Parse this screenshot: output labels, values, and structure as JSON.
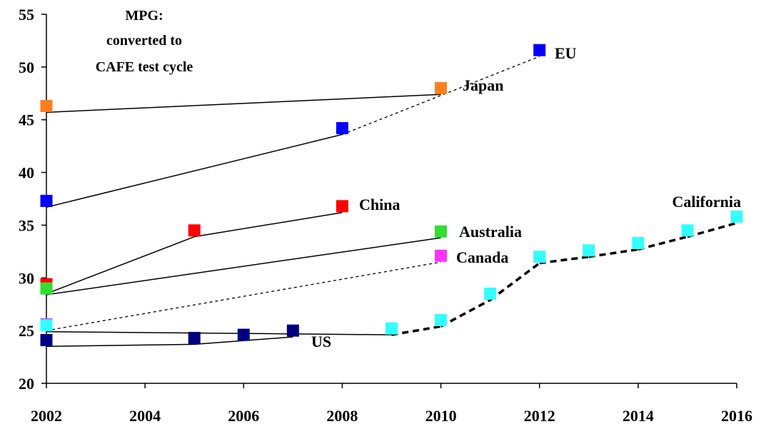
{
  "chart_data": {
    "type": "scatter",
    "title": "",
    "xlabel": "",
    "ylabel": "",
    "xlim": [
      2002,
      2016
    ],
    "ylim": [
      20,
      55
    ],
    "x_ticks": [
      "2002",
      "2004",
      "2006",
      "2008",
      "2010",
      "2012",
      "2014",
      "2016"
    ],
    "y_ticks": [
      "20",
      "25",
      "30",
      "35",
      "40",
      "45",
      "50",
      "55"
    ],
    "grid": false,
    "annotation": [
      "MPG:",
      "converted to",
      "CAFE test cycle"
    ],
    "series": [
      {
        "name": "EU",
        "color": "#0000ff",
        "points": [
          [
            2002,
            37.3
          ],
          [
            2008,
            44.2
          ],
          [
            2012,
            51.6
          ]
        ],
        "segments": [
          {
            "from": [
              2002,
              36.7
            ],
            "to": [
              2008,
              43.6
            ],
            "style": "solid"
          },
          {
            "from": [
              2008,
              43.6
            ],
            "to": [
              2012,
              51.0
            ],
            "style": "dashed"
          }
        ]
      },
      {
        "name": "Japan",
        "color": "#ff7f1f",
        "points": [
          [
            2002,
            46.3
          ],
          [
            2010,
            48.0
          ]
        ],
        "segments": [
          {
            "from": [
              2002,
              45.7
            ],
            "to": [
              2010,
              47.4
            ],
            "style": "solid"
          }
        ]
      },
      {
        "name": "China",
        "color": "#ff0000",
        "points": [
          [
            2002,
            29.4
          ],
          [
            2005,
            34.5
          ],
          [
            2008,
            36.8
          ]
        ],
        "segments": [
          {
            "from": [
              2002,
              28.5
            ],
            "to": [
              2005,
              33.9
            ],
            "style": "solid"
          },
          {
            "from": [
              2005,
              33.9
            ],
            "to": [
              2008,
              36.2
            ],
            "style": "solid"
          }
        ]
      },
      {
        "name": "Australia",
        "color": "#33dd33",
        "points": [
          [
            2002,
            29.0
          ],
          [
            2010,
            34.4
          ]
        ],
        "segments": [
          {
            "from": [
              2002,
              28.4
            ],
            "to": [
              2010,
              33.8
            ],
            "style": "solid"
          }
        ]
      },
      {
        "name": "Canada",
        "color": "#ff33ff",
        "points": [
          [
            2002,
            25.6
          ],
          [
            2010,
            32.1
          ]
        ],
        "segments": [
          {
            "from": [
              2002,
              25.0
            ],
            "to": [
              2010,
              31.5
            ],
            "style": "dashed"
          }
        ]
      },
      {
        "name": "US",
        "color": "#000080",
        "points": [
          [
            2002,
            24.1
          ],
          [
            2005,
            24.3
          ],
          [
            2006,
            24.6
          ],
          [
            2007,
            25.0
          ]
        ],
        "segments": [
          {
            "from": [
              2002,
              23.5
            ],
            "to": [
              2005,
              23.7
            ],
            "style": "solid"
          },
          {
            "from": [
              2005,
              23.7
            ],
            "to": [
              2007,
              24.4
            ],
            "style": "solid"
          }
        ]
      },
      {
        "name": "California",
        "color": "#33ffff",
        "points": [
          [
            2002,
            25.5
          ],
          [
            2009,
            25.2
          ],
          [
            2010,
            26.0
          ],
          [
            2011,
            28.5
          ],
          [
            2012,
            32.0
          ],
          [
            2013,
            32.6
          ],
          [
            2014,
            33.3
          ],
          [
            2015,
            34.5
          ],
          [
            2016,
            35.8
          ]
        ],
        "segments": [
          {
            "from": [
              2002,
              24.9
            ],
            "to": [
              2009,
              24.6
            ],
            "style": "solid"
          },
          {
            "from": [
              2009,
              24.6
            ],
            "to": [
              2010,
              25.4
            ],
            "style": "bold-dashed"
          },
          {
            "from": [
              2010,
              25.4
            ],
            "to": [
              2011,
              27.9
            ],
            "style": "bold-dashed"
          },
          {
            "from": [
              2011,
              27.9
            ],
            "to": [
              2012,
              31.4
            ],
            "style": "bold-dashed"
          },
          {
            "from": [
              2012,
              31.4
            ],
            "to": [
              2013,
              32.0
            ],
            "style": "bold-dashed"
          },
          {
            "from": [
              2013,
              32.0
            ],
            "to": [
              2014,
              32.7
            ],
            "style": "bold-dashed"
          },
          {
            "from": [
              2014,
              32.7
            ],
            "to": [
              2015,
              33.9
            ],
            "style": "bold-dashed"
          },
          {
            "from": [
              2015,
              33.9
            ],
            "to": [
              2016,
              35.2
            ],
            "style": "bold-dashed"
          }
        ]
      }
    ]
  }
}
